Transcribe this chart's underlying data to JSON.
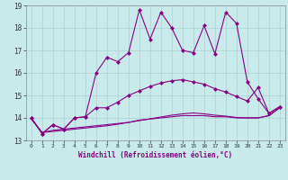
{
  "xlabel": "Windchill (Refroidissement éolien,°C)",
  "bg_color": "#c8eaea",
  "line_color": "#880088",
  "xlim": [
    -0.5,
    23.5
  ],
  "ylim": [
    13,
    19
  ],
  "yticks": [
    13,
    14,
    15,
    16,
    17,
    18,
    19
  ],
  "xticks": [
    0,
    1,
    2,
    3,
    4,
    5,
    6,
    7,
    8,
    9,
    10,
    11,
    12,
    13,
    14,
    15,
    16,
    17,
    18,
    19,
    20,
    21,
    22,
    23
  ],
  "line1_x": [
    0,
    1,
    2,
    3,
    4,
    5,
    6,
    7,
    8,
    9,
    10,
    11,
    12,
    13,
    14,
    15,
    16,
    17,
    18,
    19,
    20,
    21,
    22,
    23
  ],
  "line1_y": [
    14.0,
    13.3,
    13.7,
    13.5,
    14.0,
    14.05,
    16.0,
    16.7,
    16.5,
    16.9,
    18.8,
    17.5,
    18.7,
    18.0,
    17.0,
    16.9,
    18.1,
    16.85,
    18.7,
    18.2,
    15.6,
    14.85,
    14.2,
    14.5
  ],
  "line2_x": [
    0,
    1,
    2,
    3,
    4,
    5,
    6,
    7,
    8,
    9,
    10,
    11,
    12,
    13,
    14,
    15,
    16,
    17,
    18,
    19,
    20,
    21,
    22,
    23
  ],
  "line2_y": [
    14.0,
    13.3,
    13.7,
    13.5,
    14.0,
    14.05,
    14.45,
    14.45,
    14.7,
    15.0,
    15.2,
    15.4,
    15.55,
    15.65,
    15.7,
    15.6,
    15.5,
    15.3,
    15.15,
    14.95,
    14.75,
    15.35,
    14.2,
    14.5
  ],
  "line3_x": [
    0,
    1,
    2,
    3,
    4,
    5,
    6,
    7,
    8,
    9,
    10,
    11,
    12,
    13,
    14,
    15,
    16,
    17,
    18,
    19,
    20,
    21,
    22,
    23
  ],
  "line3_y": [
    13.95,
    13.35,
    13.45,
    13.5,
    13.55,
    13.6,
    13.65,
    13.7,
    13.75,
    13.8,
    13.9,
    13.95,
    14.0,
    14.05,
    14.1,
    14.1,
    14.1,
    14.05,
    14.05,
    14.0,
    14.0,
    14.0,
    14.1,
    14.45
  ],
  "line4_x": [
    0,
    1,
    2,
    3,
    4,
    5,
    6,
    7,
    8,
    9,
    10,
    11,
    12,
    13,
    14,
    15,
    16,
    17,
    18,
    19,
    20,
    21,
    22,
    23
  ],
  "line4_y": [
    13.95,
    13.35,
    13.4,
    13.45,
    13.5,
    13.55,
    13.6,
    13.65,
    13.72,
    13.8,
    13.88,
    13.96,
    14.04,
    14.12,
    14.18,
    14.22,
    14.18,
    14.12,
    14.08,
    14.02,
    14.0,
    14.0,
    14.1,
    14.45
  ]
}
